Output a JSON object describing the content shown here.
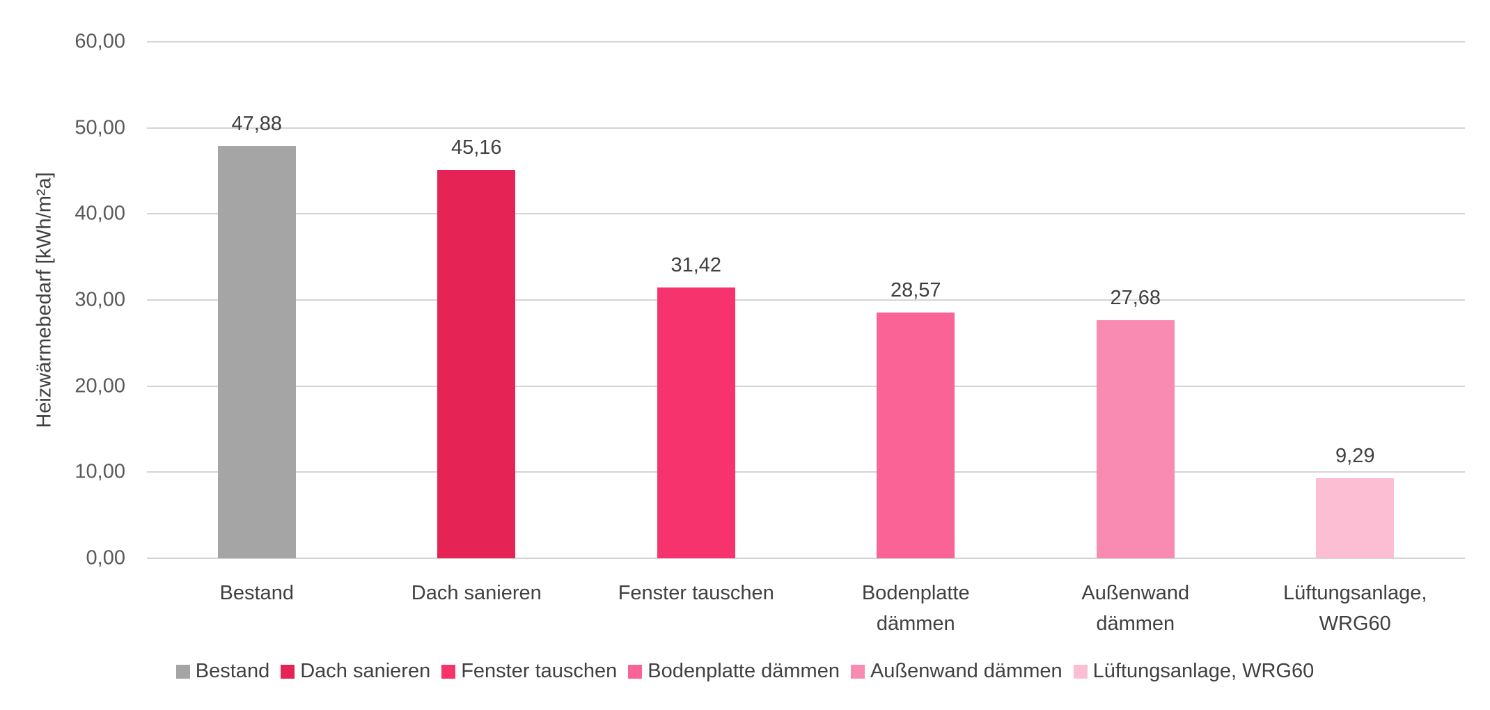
{
  "chart_data": {
    "type": "bar",
    "title": "",
    "xlabel": "",
    "ylabel": "Heizwärmebedarf [kWh/m²a]",
    "ylim": [
      0,
      60
    ],
    "yticks": [
      "0,00",
      "10,00",
      "20,00",
      "30,00",
      "40,00",
      "50,00",
      "60,00"
    ],
    "grid": true,
    "legend_position": "bottom",
    "categories": [
      "Bestand",
      "Dach sanieren",
      "Fenster tauschen",
      "Bodenplatte dämmen",
      "Außenwand dämmen",
      "Lüftungsanlage, WRG60"
    ],
    "category_lines": [
      [
        "Bestand"
      ],
      [
        "Dach sanieren"
      ],
      [
        "Fenster tauschen"
      ],
      [
        "Bodenplatte",
        "dämmen"
      ],
      [
        "Außenwand",
        "dämmen"
      ],
      [
        "Lüftungsanlage,",
        "WRG60"
      ]
    ],
    "values": [
      47.88,
      45.16,
      31.42,
      28.57,
      27.68,
      9.29
    ],
    "value_labels": [
      "47,88",
      "45,16",
      "31,42",
      "28,57",
      "27,68",
      "9,29"
    ],
    "colors": [
      "#A5A5A5",
      "#E62355",
      "#F7336E",
      "#FA6396",
      "#F98BB2",
      "#FCBED3"
    ],
    "legend": [
      "Bestand",
      "Dach sanieren",
      "Fenster tauschen",
      "Bodenplatte dämmen",
      "Außenwand dämmen",
      "Lüftungsanlage, WRG60"
    ]
  }
}
